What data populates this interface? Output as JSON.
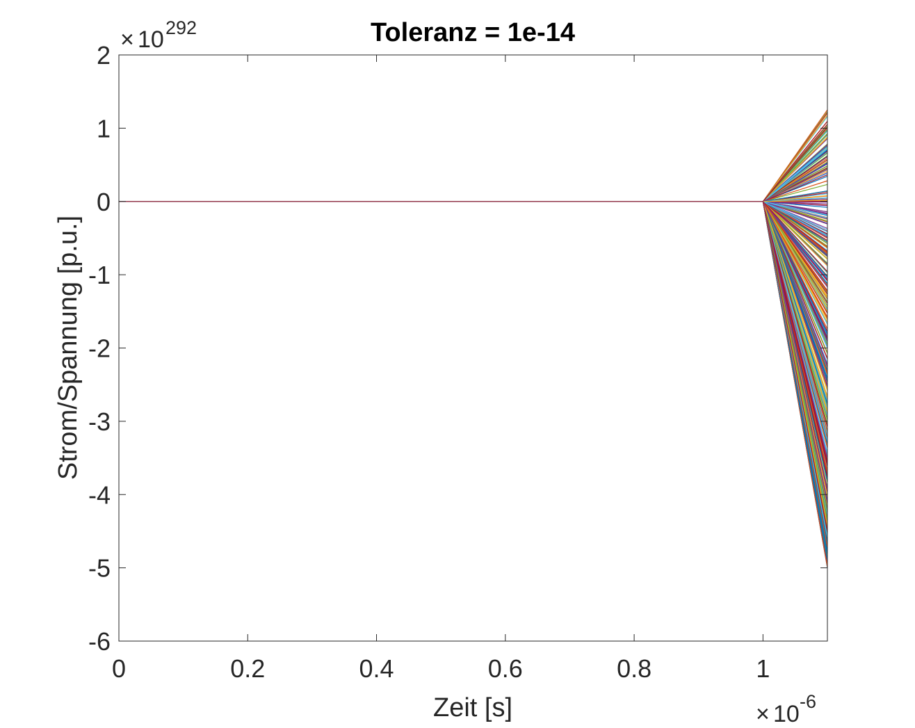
{
  "chart_data": {
    "type": "line",
    "title": "Toleranz = 1e-14",
    "xlabel": "Zeit [s]",
    "ylabel": "Strom/Spannung [p.u.]",
    "x_exponent_label": "10",
    "x_exponent": "-6",
    "y_exponent_label": "10",
    "y_exponent": "292",
    "xlim": [
      0,
      1.1
    ],
    "ylim": [
      -6,
      2
    ],
    "xticks": [
      0,
      0.2,
      0.4,
      0.6,
      0.8,
      1
    ],
    "xtick_labels": [
      "0",
      "0.2",
      "0.4",
      "0.6",
      "0.8",
      "1"
    ],
    "yticks": [
      2,
      1,
      0,
      -1,
      -2,
      -3,
      -4,
      -5,
      -6
    ],
    "ytick_labels": [
      "2",
      "1",
      "0",
      "-1",
      "-2",
      "-3",
      "-4",
      "-5",
      "-6"
    ],
    "x": [
      0,
      1.0,
      1.1
    ],
    "series_count_note": "many",
    "series_final_range": [
      -5.0,
      1.25
    ],
    "grid": false,
    "box": true,
    "colors": [
      "#0072BD",
      "#D95319",
      "#EDB120",
      "#7E2F8E",
      "#77AC30",
      "#4DBEEE",
      "#A2142F"
    ]
  }
}
